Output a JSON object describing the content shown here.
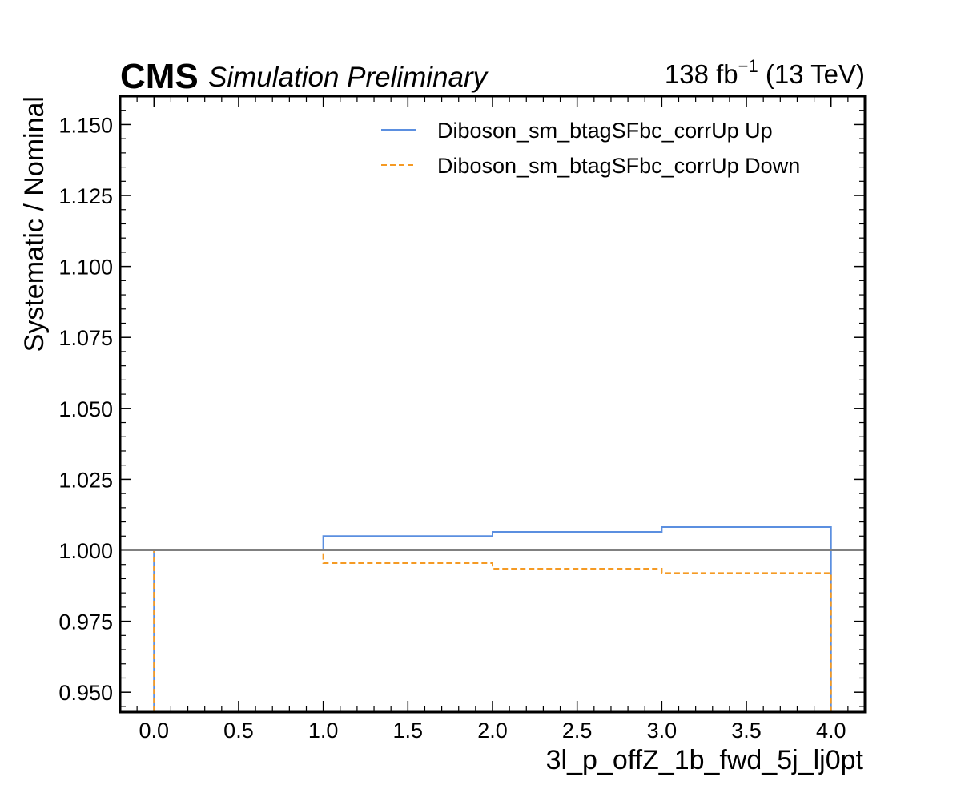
{
  "header": {
    "experiment": "CMS",
    "subtitle": "Simulation Preliminary",
    "luminosity_prefix": "138 fb",
    "luminosity_exp": "−1",
    "energy": "(13 TeV)"
  },
  "colors": {
    "up": "#5b8fe0",
    "down": "#f59a23",
    "reference": "#808080",
    "axes": "#000000"
  },
  "chart_data": {
    "type": "line",
    "drawstyle": "step",
    "xlabel": "3l_p_offZ_1b_fwd_5j_lj0pt",
    "ylabel": "Systematic / Nominal",
    "xlim": [
      -0.2,
      4.2
    ],
    "ylim": [
      0.943,
      1.16
    ],
    "x_ticks": [
      0.0,
      0.5,
      1.0,
      1.5,
      2.0,
      2.5,
      3.0,
      3.5,
      4.0
    ],
    "x_tick_labels": [
      "0.0",
      "0.5",
      "1.0",
      "1.5",
      "2.0",
      "2.5",
      "3.0",
      "3.5",
      "4.0"
    ],
    "y_ticks": [
      0.95,
      0.975,
      1.0,
      1.025,
      1.05,
      1.075,
      1.1,
      1.125,
      1.15
    ],
    "y_tick_labels": [
      "0.950",
      "0.975",
      "1.000",
      "1.025",
      "1.050",
      "1.075",
      "1.100",
      "1.125",
      "1.150"
    ],
    "reference_line": 1.0,
    "bin_edges": [
      0,
      1,
      2,
      3,
      4
    ],
    "series": [
      {
        "name": "Diboson_sm_btagSFbc_corrUp Up",
        "linestyle": "solid",
        "values": [
          1.0,
          1.005,
          1.0065,
          1.0082
        ]
      },
      {
        "name": "Diboson_sm_btagSFbc_corrUp Down",
        "linestyle": "dashed",
        "values": [
          1.0,
          0.9955,
          0.9935,
          0.992
        ]
      }
    ],
    "legend_position": "top-right",
    "grid": false
  }
}
